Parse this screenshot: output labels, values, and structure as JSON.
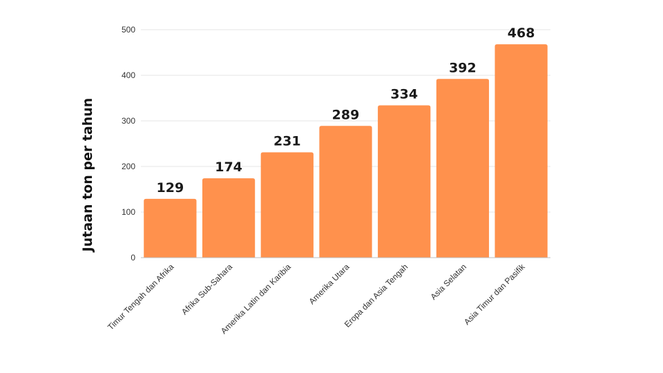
{
  "chart_data": {
    "type": "bar",
    "title": "",
    "xlabel": "",
    "ylabel": "Jutaan ton per tahun",
    "categories": [
      "Timur Tengah dan Afrika",
      "Afrika Sub-Sahara",
      "Amerika Latin dan Karibia",
      "Amerika Utara",
      "Eropa dan Asia Tengah",
      "Asia Selatan",
      "Asia Timur dan Pasifik"
    ],
    "values": [
      129,
      174,
      231,
      289,
      334,
      392,
      468
    ],
    "ylim": [
      0,
      500
    ],
    "yticks": [
      0,
      100,
      200,
      300,
      400,
      500
    ],
    "grid": true,
    "legend": "none",
    "bar_color": "#FF914D"
  }
}
